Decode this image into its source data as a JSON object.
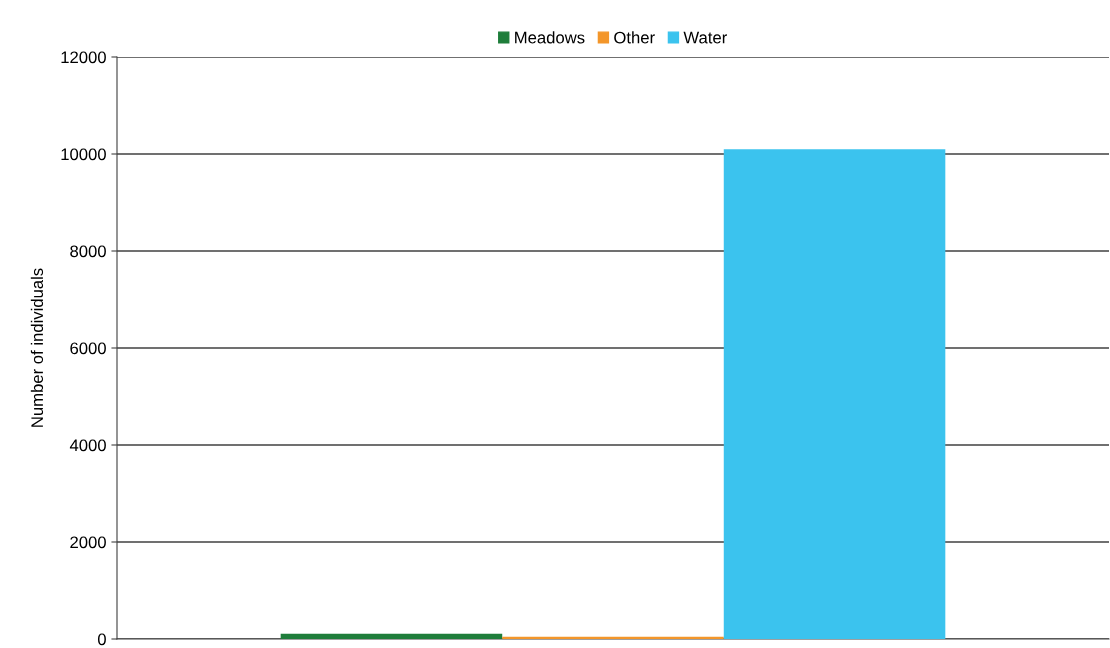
{
  "chart_data": {
    "type": "bar",
    "ylabel": "Number of individuals",
    "categories": [
      null
    ],
    "series": [
      {
        "name": "Meadows",
        "color": "#1e7d3a",
        "values": [
          110
        ]
      },
      {
        "name": "Other",
        "color": "#f3962a",
        "values": [
          45
        ]
      },
      {
        "name": "Water",
        "color": "#3bc3ee",
        "values": [
          10100
        ]
      }
    ],
    "ylim": [
      0,
      12000
    ],
    "yticks": [
      0,
      2000,
      4000,
      6000,
      8000,
      10000,
      12000
    ],
    "grid": "y",
    "legend": "top"
  }
}
